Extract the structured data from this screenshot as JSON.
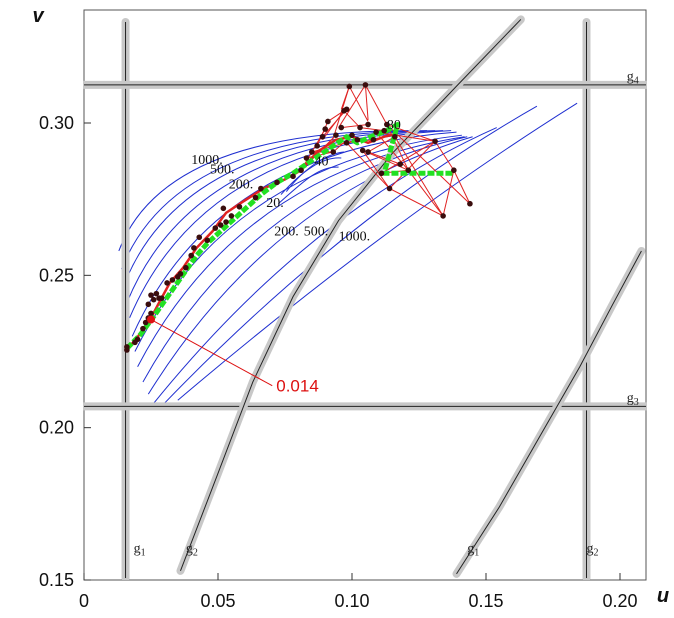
{
  "chart_data": {
    "type": "scatter",
    "xlabel": "u",
    "ylabel": "v",
    "xlim": [
      -0.005,
      0.21
    ],
    "ylim": [
      0.15,
      0.33
    ],
    "x_ticks": [
      {
        "value": 0,
        "label": "0"
      },
      {
        "value": 0.05,
        "label": "0.05"
      },
      {
        "value": 0.1,
        "label": "0.10"
      },
      {
        "value": 0.15,
        "label": "0.15"
      },
      {
        "value": 0.2,
        "label": "0.20"
      }
    ],
    "y_ticks": [
      {
        "value": 0.15,
        "label": "0.15"
      },
      {
        "value": 0.2,
        "label": "0.20"
      },
      {
        "value": 0.25,
        "label": "0.25"
      },
      {
        "value": 0.3,
        "label": "0.30"
      }
    ],
    "constraints": [
      {
        "name": "g",
        "sub": "1",
        "type": "vertical",
        "u": 0.0155,
        "label_pos": [
          0.0185,
          0.159
        ]
      },
      {
        "name": "g",
        "sub": "2",
        "type": "vertical",
        "u": 0.1875,
        "label_pos": [
          0.1875,
          0.159
        ]
      },
      {
        "name": "g",
        "sub": "3",
        "type": "horizontal",
        "v": 0.207,
        "label_pos": [
          0.2025,
          0.2085
        ]
      },
      {
        "name": "g",
        "sub": "4",
        "type": "horizontal",
        "v": 0.3125,
        "label_pos": [
          0.2025,
          0.314
        ]
      },
      {
        "name": "g",
        "sub": "2",
        "type": "curve",
        "points": [
          [
            0.036,
            0.153
          ],
          [
            0.05,
            0.185
          ],
          [
            0.063,
            0.215
          ],
          [
            0.078,
            0.243
          ],
          [
            0.095,
            0.268
          ],
          [
            0.115,
            0.29
          ],
          [
            0.14,
            0.313
          ],
          [
            0.163,
            0.334
          ]
        ],
        "label_pos": [
          0.038,
          0.159
        ]
      },
      {
        "name": "g",
        "sub": "1",
        "type": "curve",
        "points": [
          [
            0.139,
            0.152
          ],
          [
            0.155,
            0.174
          ],
          [
            0.17,
            0.197
          ],
          [
            0.185,
            0.22
          ],
          [
            0.197,
            0.24
          ],
          [
            0.208,
            0.258
          ]
        ],
        "label_pos": [
          0.143,
          0.159
        ]
      }
    ],
    "contour_labels": [
      {
        "text": "1000.",
        "u": 0.04,
        "v": 0.2865
      },
      {
        "text": "500.",
        "u": 0.047,
        "v": 0.2835
      },
      {
        "text": "200.",
        "u": 0.054,
        "v": 0.2785
      },
      {
        "text": "20.",
        "u": 0.068,
        "v": 0.2725
      },
      {
        "text": "40",
        "u": 0.086,
        "v": 0.286
      },
      {
        "text": "80",
        "u": 0.113,
        "v": 0.298
      },
      {
        "text": "200.",
        "u": 0.071,
        "v": 0.263
      },
      {
        "text": "500.",
        "u": 0.082,
        "v": 0.263
      },
      {
        "text": "1000.",
        "u": 0.095,
        "v": 0.2615
      }
    ],
    "contours": [
      {
        "tip": [
          0.124,
          0.2975
        ],
        "start": [
          0.013,
          0.258
        ],
        "cp": [
          0.03,
          0.298
        ]
      },
      {
        "tip": [
          0.128,
          0.2975
        ],
        "start": [
          0.014,
          0.252
        ],
        "cp": [
          0.034,
          0.297
        ]
      },
      {
        "tip": [
          0.131,
          0.2975
        ],
        "start": [
          0.015,
          0.247
        ],
        "cp": [
          0.037,
          0.296
        ]
      },
      {
        "tip": [
          0.134,
          0.2975
        ],
        "start": [
          0.016,
          0.241
        ],
        "cp": [
          0.041,
          0.295
        ]
      },
      {
        "tip": [
          0.137,
          0.2975
        ],
        "start": [
          0.017,
          0.236
        ],
        "cp": [
          0.045,
          0.294
        ]
      },
      {
        "tip": [
          0.139,
          0.297
        ],
        "start": [
          0.018,
          0.23
        ],
        "cp": [
          0.049,
          0.291
        ]
      },
      {
        "tip": [
          0.141,
          0.296
        ],
        "start": [
          0.019,
          0.225
        ],
        "cp": [
          0.054,
          0.287
        ]
      },
      {
        "tip": [
          0.142,
          0.2955
        ],
        "start": [
          0.02,
          0.22
        ],
        "cp": [
          0.058,
          0.284
        ]
      },
      {
        "tip": [
          0.143,
          0.2955
        ],
        "start": [
          0.022,
          0.215
        ],
        "cp": [
          0.063,
          0.28
        ]
      },
      {
        "tip": [
          0.145,
          0.2955
        ],
        "start": [
          0.024,
          0.211
        ],
        "cp": [
          0.07,
          0.276
        ]
      },
      {
        "tip": [
          0.154,
          0.2985
        ],
        "start": [
          0.026,
          0.208
        ],
        "cp": [
          0.084,
          0.271
        ]
      },
      {
        "tip": [
          0.169,
          0.3055
        ],
        "start": [
          0.03,
          0.208
        ],
        "cp": [
          0.098,
          0.27
        ]
      },
      {
        "tip": [
          0.184,
          0.3065
        ],
        "start": [
          0.035,
          0.209
        ],
        "cp": [
          0.114,
          0.268
        ]
      }
    ],
    "contour_inner": [
      {
        "from": [
          0.0735,
          0.2765
        ],
        "to": [
          0.096,
          0.2885
        ],
        "c1": [
          0.081,
          0.284
        ],
        "c2": [
          0.089,
          0.289
        ]
      },
      {
        "from": [
          0.0725,
          0.2735
        ],
        "to": [
          0.095,
          0.2855
        ],
        "c1": [
          0.082,
          0.281
        ],
        "c2": [
          0.088,
          0.286
        ]
      },
      {
        "from": [
          0.0755,
          0.2775
        ],
        "to": [
          0.097,
          0.2905
        ],
        "c1": [
          0.083,
          0.286
        ],
        "c2": [
          0.091,
          0.29
        ]
      }
    ],
    "red_points": [
      [
        0.016,
        0.2255
      ],
      [
        0.016,
        0.2265
      ],
      [
        0.019,
        0.228
      ],
      [
        0.02,
        0.229
      ],
      [
        0.022,
        0.2325
      ],
      [
        0.023,
        0.2345
      ],
      [
        0.024,
        0.236
      ],
      [
        0.025,
        0.2375
      ],
      [
        0.024,
        0.2405
      ],
      [
        0.026,
        0.242
      ],
      [
        0.025,
        0.2435
      ],
      [
        0.027,
        0.244
      ],
      [
        0.028,
        0.2425
      ],
      [
        0.029,
        0.2425
      ],
      [
        0.031,
        0.2475
      ],
      [
        0.033,
        0.2485
      ],
      [
        0.035,
        0.2495
      ],
      [
        0.036,
        0.2505
      ],
      [
        0.038,
        0.2525
      ],
      [
        0.04,
        0.2565
      ],
      [
        0.041,
        0.259
      ],
      [
        0.043,
        0.2625
      ],
      [
        0.046,
        0.2615
      ],
      [
        0.049,
        0.2655
      ],
      [
        0.051,
        0.2665
      ],
      [
        0.053,
        0.2675
      ],
      [
        0.052,
        0.272
      ],
      [
        0.055,
        0.2695
      ],
      [
        0.058,
        0.2725
      ],
      [
        0.064,
        0.2755
      ],
      [
        0.066,
        0.2785
      ],
      [
        0.072,
        0.2805
      ],
      [
        0.078,
        0.2825
      ],
      [
        0.081,
        0.2845
      ],
      [
        0.083,
        0.2885
      ],
      [
        0.085,
        0.2905
      ],
      [
        0.087,
        0.2925
      ],
      [
        0.089,
        0.2955
      ],
      [
        0.09,
        0.298
      ],
      [
        0.091,
        0.3005
      ],
      [
        0.093,
        0.2905
      ],
      [
        0.094,
        0.296
      ],
      [
        0.096,
        0.2985
      ],
      [
        0.097,
        0.304
      ],
      [
        0.098,
        0.2935
      ],
      [
        0.1,
        0.296
      ],
      [
        0.102,
        0.2945
      ],
      [
        0.103,
        0.2985
      ],
      [
        0.104,
        0.291
      ],
      [
        0.106,
        0.2905
      ],
      [
        0.108,
        0.2945
      ],
      [
        0.109,
        0.297
      ],
      [
        0.111,
        0.2835
      ],
      [
        0.112,
        0.2975
      ],
      [
        0.113,
        0.2995
      ],
      [
        0.114,
        0.2785
      ],
      [
        0.116,
        0.2955
      ],
      [
        0.118,
        0.2865
      ],
      [
        0.121,
        0.2845
      ],
      [
        0.131,
        0.294
      ],
      [
        0.134,
        0.2695
      ],
      [
        0.138,
        0.2845
      ],
      [
        0.144,
        0.2735
      ],
      [
        0.099,
        0.312
      ],
      [
        0.105,
        0.3125
      ],
      [
        0.098,
        0.3045
      ],
      [
        0.106,
        0.2995
      ]
    ],
    "red_network_edges": [
      [
        [
          0.099,
          0.312
        ],
        [
          0.096,
          0.3045
        ]
      ],
      [
        [
          0.099,
          0.312
        ],
        [
          0.106,
          0.3005
        ]
      ],
      [
        [
          0.099,
          0.312
        ],
        [
          0.093,
          0.295
        ]
      ],
      [
        [
          0.105,
          0.3125
        ],
        [
          0.106,
          0.301
        ]
      ],
      [
        [
          0.105,
          0.3125
        ],
        [
          0.113,
          0.2995
        ]
      ],
      [
        [
          0.105,
          0.3125
        ],
        [
          0.095,
          0.2985
        ]
      ],
      [
        [
          0.097,
          0.304
        ],
        [
          0.089,
          0.2945
        ]
      ],
      [
        [
          0.097,
          0.304
        ],
        [
          0.103,
          0.2985
        ]
      ],
      [
        [
          0.097,
          0.304
        ],
        [
          0.091,
          0.3005
        ]
      ],
      [
        [
          0.113,
          0.2995
        ],
        [
          0.131,
          0.294
        ]
      ],
      [
        [
          0.113,
          0.2995
        ],
        [
          0.121,
          0.2845
        ]
      ],
      [
        [
          0.131,
          0.294
        ],
        [
          0.114,
          0.2785
        ]
      ],
      [
        [
          0.131,
          0.294
        ],
        [
          0.138,
          0.2845
        ]
      ],
      [
        [
          0.138,
          0.2845
        ],
        [
          0.134,
          0.2695
        ]
      ],
      [
        [
          0.138,
          0.2845
        ],
        [
          0.144,
          0.2735
        ]
      ],
      [
        [
          0.134,
          0.2695
        ],
        [
          0.114,
          0.2785
        ]
      ],
      [
        [
          0.144,
          0.2735
        ],
        [
          0.113,
          0.2995
        ]
      ],
      [
        [
          0.121,
          0.2845
        ],
        [
          0.134,
          0.2695
        ]
      ],
      [
        [
          0.121,
          0.2845
        ],
        [
          0.104,
          0.291
        ]
      ],
      [
        [
          0.114,
          0.2785
        ],
        [
          0.104,
          0.291
        ]
      ],
      [
        [
          0.114,
          0.2785
        ],
        [
          0.098,
          0.2935
        ]
      ],
      [
        [
          0.106,
          0.2905
        ],
        [
          0.116,
          0.2955
        ]
      ],
      [
        [
          0.106,
          0.2905
        ],
        [
          0.118,
          0.2865
        ]
      ],
      [
        [
          0.091,
          0.3005
        ],
        [
          0.087,
          0.2925
        ]
      ],
      [
        [
          0.093,
          0.2905
        ],
        [
          0.1,
          0.296
        ]
      ],
      [
        [
          0.093,
          0.2905
        ],
        [
          0.083,
          0.2885
        ]
      ],
      [
        [
          0.103,
          0.2985
        ],
        [
          0.112,
          0.2975
        ]
      ],
      [
        [
          0.109,
          0.297
        ],
        [
          0.131,
          0.294
        ]
      ],
      [
        [
          0.109,
          0.297
        ],
        [
          0.121,
          0.2845
        ]
      ],
      [
        [
          0.098,
          0.2935
        ],
        [
          0.108,
          0.2945
        ]
      ],
      [
        [
          0.085,
          0.2905
        ],
        [
          0.102,
          0.2945
        ]
      ],
      [
        [
          0.085,
          0.2905
        ],
        [
          0.093,
          0.2905
        ]
      ],
      [
        [
          0.093,
          0.295
        ],
        [
          0.081,
          0.2845
        ]
      ],
      [
        [
          0.081,
          0.2845
        ],
        [
          0.09,
          0.298
        ]
      ],
      [
        [
          0.081,
          0.2845
        ],
        [
          0.094,
          0.296
        ]
      ],
      [
        [
          0.111,
          0.2835
        ],
        [
          0.121,
          0.2845
        ]
      ],
      [
        [
          0.111,
          0.2835
        ],
        [
          0.131,
          0.294
        ]
      ],
      [
        [
          0.116,
          0.2955
        ],
        [
          0.134,
          0.2695
        ]
      ],
      [
        [
          0.098,
          0.3045
        ],
        [
          0.089,
          0.2955
        ]
      ],
      [
        [
          0.096,
          0.2985
        ],
        [
          0.106,
          0.2995
        ]
      ]
    ],
    "red_path": [
      [
        0.016,
        0.226
      ],
      [
        0.019,
        0.2285
      ],
      [
        0.023,
        0.2335
      ],
      [
        0.025,
        0.236
      ],
      [
        0.028,
        0.241
      ],
      [
        0.032,
        0.2475
      ],
      [
        0.037,
        0.2525
      ],
      [
        0.042,
        0.259
      ],
      [
        0.048,
        0.2645
      ],
      [
        0.053,
        0.2705
      ],
      [
        0.059,
        0.274
      ],
      [
        0.067,
        0.2785
      ],
      [
        0.075,
        0.2815
      ],
      [
        0.081,
        0.2845
      ],
      [
        0.087,
        0.2905
      ],
      [
        0.094,
        0.2945
      ],
      [
        0.1,
        0.2955
      ],
      [
        0.106,
        0.2935
      ],
      [
        0.112,
        0.2955
      ],
      [
        0.117,
        0.2965
      ]
    ],
    "green_path": [
      [
        0.016,
        0.226
      ],
      [
        0.021,
        0.2305
      ],
      [
        0.026,
        0.2365
      ],
      [
        0.03,
        0.2415
      ],
      [
        0.034,
        0.2465
      ],
      [
        0.038,
        0.2515
      ],
      [
        0.042,
        0.2565
      ],
      [
        0.046,
        0.2605
      ],
      [
        0.051,
        0.2645
      ],
      [
        0.056,
        0.2685
      ],
      [
        0.061,
        0.2725
      ],
      [
        0.066,
        0.2765
      ],
      [
        0.072,
        0.2805
      ],
      [
        0.078,
        0.2835
      ],
      [
        0.083,
        0.2865
      ],
      [
        0.088,
        0.2895
      ],
      [
        0.093,
        0.2925
      ],
      [
        0.098,
        0.2955
      ],
      [
        0.102,
        0.2935
      ],
      [
        0.107,
        0.2955
      ],
      [
        0.113,
        0.2975
      ],
      [
        0.117,
        0.2995
      ],
      [
        0.112,
        0.2835
      ],
      [
        0.125,
        0.2835
      ],
      [
        0.138,
        0.2835
      ]
    ],
    "annotation": {
      "text": "0.014",
      "color": "#dd1111",
      "point": [
        0.025,
        0.2355
      ],
      "label_pos": [
        0.068,
        0.2118
      ]
    },
    "colors": {
      "contour": "#1f2fd0",
      "red": "#e02222",
      "green": "#22e022",
      "constraint": "#c8c8c8",
      "point": "#3a0d0d"
    }
  }
}
